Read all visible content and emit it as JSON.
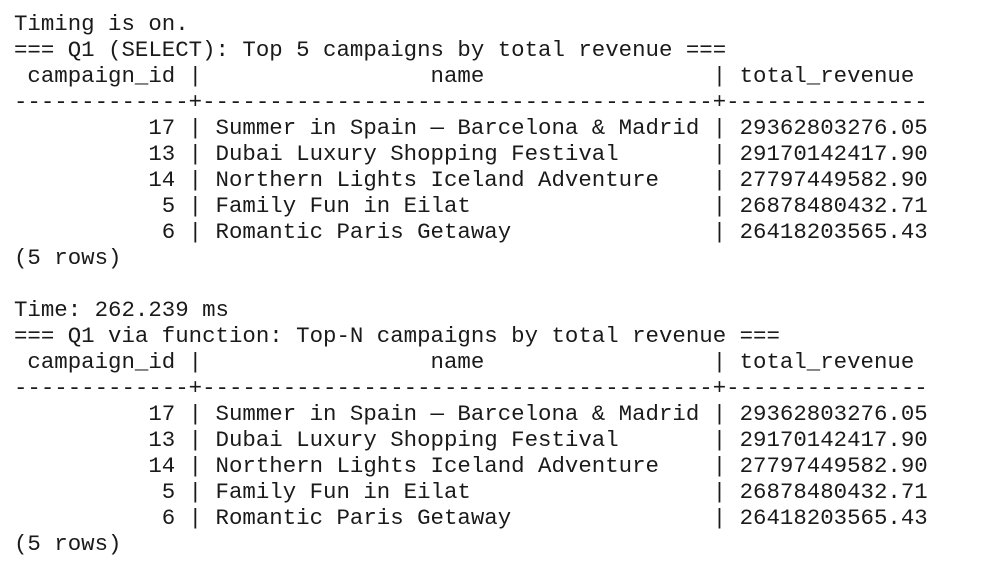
{
  "terminal": {
    "blocks": [
      {
        "lines": [
          "Timing is on.",
          "=== Q1 (SELECT): Top 5 campaigns by total revenue ===",
          " campaign_id |                 name                 | total_revenue",
          "-------------+--------------------------------------+---------------",
          "          17 | Summer in Spain — Barcelona & Madrid | 29362803276.05",
          "          13 | Dubai Luxury Shopping Festival       | 29170142417.90",
          "          14 | Northern Lights Iceland Adventure    | 27797449582.90",
          "           5 | Family Fun in Eilat                  | 26878480432.71",
          "           6 | Romantic Paris Getaway               | 26418203565.43",
          "(5 rows)"
        ]
      },
      {
        "lines": [
          "Time: 262.239 ms",
          "=== Q1 via function: Top-N campaigns by total revenue ===",
          " campaign_id |                 name                 | total_revenue",
          "-------------+--------------------------------------+---------------",
          "          17 | Summer in Spain — Barcelona & Madrid | 29362803276.05",
          "          13 | Dubai Luxury Shopping Festival       | 29170142417.90",
          "          14 | Northern Lights Iceland Adventure    | 27797449582.90",
          "           5 | Family Fun in Eilat                  | 26878480432.71",
          "           6 | Romantic Paris Getaway               | 26418203565.43",
          "(5 rows)"
        ]
      }
    ]
  }
}
